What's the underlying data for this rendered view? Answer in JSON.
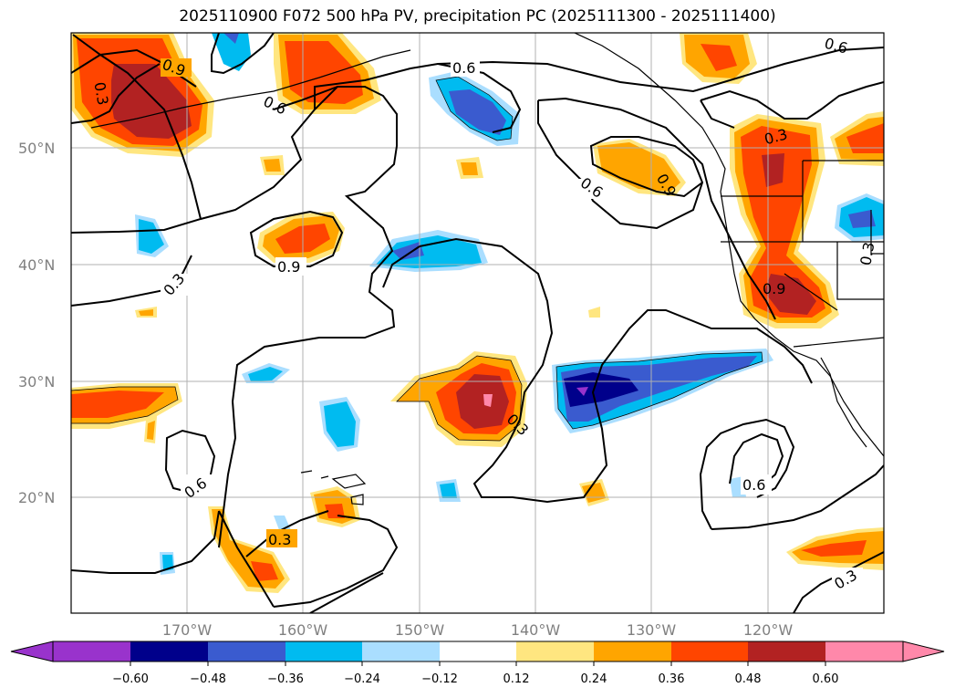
{
  "title": "2025110900 F072 500 hPa PV, precipitation PC (2025111300 - 2025111400)",
  "axes": {
    "lat_labels": [
      "50°N",
      "40°N",
      "30°N",
      "20°N"
    ],
    "lon_labels": [
      "170°W",
      "160°W",
      "150°W",
      "140°W",
      "130°W",
      "120°W"
    ]
  },
  "colorbar": {
    "levels": [
      "−0.60",
      "−0.48",
      "−0.36",
      "−0.24",
      "−0.12",
      "0.12",
      "0.24",
      "0.36",
      "0.48",
      "0.60"
    ],
    "colors": [
      "#9933cc",
      "#00008b",
      "#3a5bcf",
      "#00bbf0",
      "#aadeff",
      "#ffffff",
      "#ffe680",
      "#ffa500",
      "#ff4500",
      "#b22222",
      "#ff88aa"
    ]
  },
  "contour_labels": [
    "0.9",
    "0.3",
    "0.6",
    "0.6",
    "0.6",
    "0.9",
    "0.6",
    "0.9",
    "0.3",
    "0.3",
    "0.9",
    "0.3",
    "0.3",
    "0.6",
    "0.3",
    "0.6",
    "0.3"
  ],
  "colors": {
    "orange": "#ffa500",
    "red_orange": "#ff4500",
    "dark_red": "#b22222",
    "pink": "#ff88aa",
    "yellow": "#ffe680",
    "light_blue": "#aadeff",
    "cyan": "#00bbf0",
    "royal_blue": "#3a5bcf",
    "navy": "#00008b",
    "purple": "#9933cc"
  }
}
